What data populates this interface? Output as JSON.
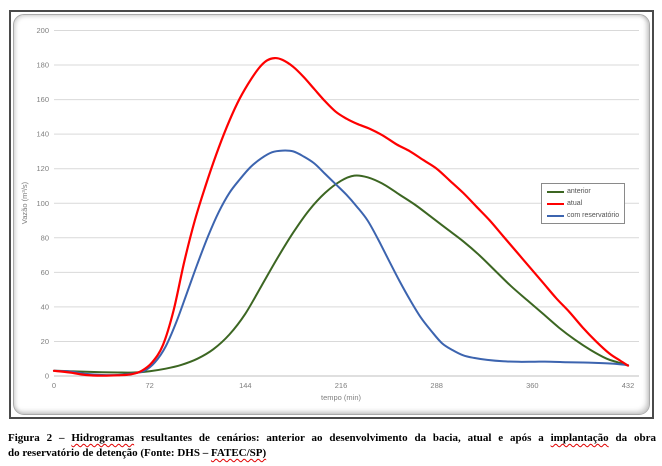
{
  "chart_data": {
    "type": "line",
    "title": "",
    "xlabel": "tempo (min)",
    "ylabel": "Vazão (m³/s)",
    "xlim": [
      0,
      432
    ],
    "ylim": [
      0,
      200
    ],
    "x_ticks": [
      0,
      72,
      144,
      216,
      288,
      360,
      432
    ],
    "y_ticks": [
      0,
      20,
      40,
      60,
      80,
      100,
      120,
      140,
      160,
      180,
      200
    ],
    "grid": "horizontal-only",
    "legend_position": "middle-right",
    "series": [
      {
        "name": "anterior",
        "color": "#3C6622",
        "points": [
          [
            0,
            3
          ],
          [
            12,
            2.8
          ],
          [
            24,
            2.5
          ],
          [
            36,
            2.2
          ],
          [
            48,
            2
          ],
          [
            60,
            2
          ],
          [
            72,
            2.8
          ],
          [
            84,
            4.2
          ],
          [
            96,
            6.5
          ],
          [
            108,
            10
          ],
          [
            120,
            15.5
          ],
          [
            132,
            24
          ],
          [
            144,
            36
          ],
          [
            156,
            52
          ],
          [
            168,
            68
          ],
          [
            180,
            83
          ],
          [
            192,
            96
          ],
          [
            204,
            106
          ],
          [
            216,
            113
          ],
          [
            226,
            116
          ],
          [
            236,
            115
          ],
          [
            248,
            111
          ],
          [
            260,
            105
          ],
          [
            272,
            99
          ],
          [
            284,
            92
          ],
          [
            296,
            85
          ],
          [
            308,
            78
          ],
          [
            320,
            70
          ],
          [
            332,
            61
          ],
          [
            344,
            52
          ],
          [
            356,
            44
          ],
          [
            368,
            36
          ],
          [
            380,
            28
          ],
          [
            392,
            21
          ],
          [
            404,
            15
          ],
          [
            416,
            10
          ],
          [
            424,
            8
          ],
          [
            432,
            6
          ]
        ]
      },
      {
        "name": "atual",
        "color": "#FE0000",
        "points": [
          [
            0,
            3
          ],
          [
            12,
            2
          ],
          [
            24,
            0.6
          ],
          [
            36,
            0.2
          ],
          [
            48,
            0.4
          ],
          [
            58,
            1
          ],
          [
            66,
            3
          ],
          [
            74,
            8
          ],
          [
            82,
            18
          ],
          [
            90,
            38
          ],
          [
            98,
            66
          ],
          [
            106,
            90
          ],
          [
            114,
            110
          ],
          [
            122,
            128
          ],
          [
            130,
            144
          ],
          [
            138,
            158
          ],
          [
            146,
            169
          ],
          [
            154,
            178
          ],
          [
            160,
            182.5
          ],
          [
            166,
            184
          ],
          [
            172,
            183
          ],
          [
            180,
            179
          ],
          [
            188,
            173
          ],
          [
            196,
            166
          ],
          [
            204,
            159
          ],
          [
            212,
            153
          ],
          [
            220,
            149
          ],
          [
            228,
            146
          ],
          [
            238,
            143
          ],
          [
            248,
            139
          ],
          [
            258,
            134
          ],
          [
            268,
            130
          ],
          [
            278,
            125
          ],
          [
            288,
            120
          ],
          [
            298,
            113
          ],
          [
            308,
            106
          ],
          [
            318,
            98
          ],
          [
            328,
            90
          ],
          [
            338,
            81
          ],
          [
            348,
            72
          ],
          [
            358,
            63
          ],
          [
            368,
            54
          ],
          [
            378,
            45
          ],
          [
            388,
            37
          ],
          [
            398,
            28
          ],
          [
            408,
            20
          ],
          [
            418,
            13
          ],
          [
            426,
            9
          ],
          [
            432,
            6
          ]
        ]
      },
      {
        "name": "com reservatório",
        "color": "#3C64AF",
        "points": [
          [
            0,
            3
          ],
          [
            12,
            2.6
          ],
          [
            24,
            1.2
          ],
          [
            36,
            0.6
          ],
          [
            48,
            0.6
          ],
          [
            60,
            1.5
          ],
          [
            68,
            3
          ],
          [
            76,
            8
          ],
          [
            84,
            17
          ],
          [
            92,
            31
          ],
          [
            100,
            48
          ],
          [
            108,
            65
          ],
          [
            116,
            81
          ],
          [
            124,
            95
          ],
          [
            132,
            106
          ],
          [
            140,
            114
          ],
          [
            148,
            121
          ],
          [
            156,
            126
          ],
          [
            164,
            129.5
          ],
          [
            172,
            130.5
          ],
          [
            180,
            130
          ],
          [
            188,
            127
          ],
          [
            196,
            123
          ],
          [
            204,
            117
          ],
          [
            212,
            111
          ],
          [
            220,
            105
          ],
          [
            228,
            98
          ],
          [
            236,
            90
          ],
          [
            244,
            79
          ],
          [
            252,
            67
          ],
          [
            260,
            55
          ],
          [
            268,
            44
          ],
          [
            276,
            34
          ],
          [
            284,
            26
          ],
          [
            292,
            19
          ],
          [
            300,
            15
          ],
          [
            308,
            12
          ],
          [
            316,
            10.5
          ],
          [
            326,
            9.3
          ],
          [
            338,
            8.5
          ],
          [
            350,
            8.2
          ],
          [
            362,
            8.3
          ],
          [
            374,
            8.3
          ],
          [
            386,
            8
          ],
          [
            398,
            7.8
          ],
          [
            410,
            7.5
          ],
          [
            420,
            7.2
          ],
          [
            432,
            6.3
          ]
        ]
      }
    ],
    "draw_order": [
      0,
      2,
      1
    ]
  },
  "colors": {
    "gridline": "#D9D9D9",
    "axis_line": "#BFBFBF",
    "tick_text": "#7F7F7F",
    "series_green": "#3C6622",
    "series_red": "#FE0000",
    "series_blue": "#3C64AF"
  },
  "caption": {
    "lines": [
      [
        {
          "text": "Figura 2 – ",
          "misspelled": false
        },
        {
          "text": "Hidrogramas",
          "misspelled": true
        },
        {
          "text": " resultantes de cenários: anterior ao desenvolvimento da bacia, atual e após a ",
          "misspelled": false
        },
        {
          "text": "implantação",
          "misspelled": true
        },
        {
          "text": " da obra",
          "misspelled": false
        }
      ],
      [
        {
          "text": "do reservatório de detenção (Fonte: DHS – ",
          "misspelled": false
        },
        {
          "text": "FATEC/SP)",
          "misspelled": true
        }
      ]
    ]
  }
}
